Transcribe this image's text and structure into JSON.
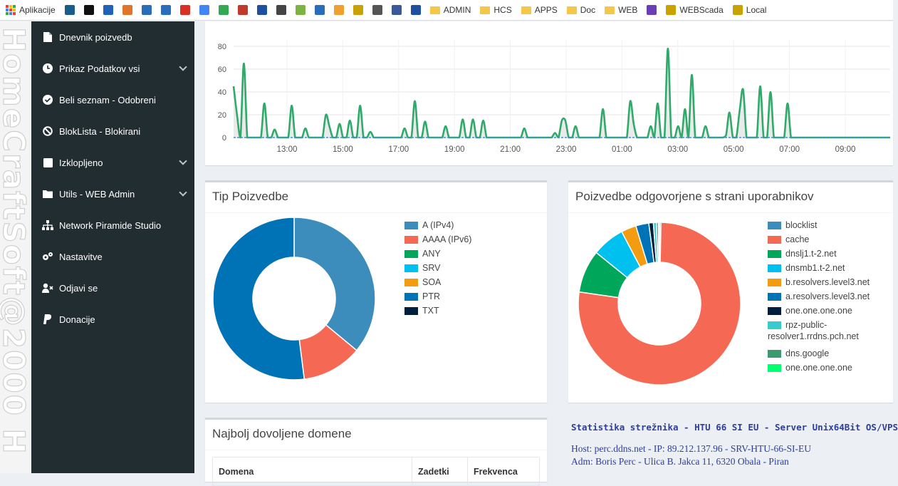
{
  "bookmarks": [
    {
      "icon": "apps-grid-icon",
      "label": "Aplikacije",
      "color": ""
    },
    {
      "icon": "u-logo-icon",
      "label": "",
      "color": "#1a5c8a"
    },
    {
      "icon": "ip-logo-icon",
      "label": "",
      "color": "#111111"
    },
    {
      "icon": "wifi-signal-icon",
      "label": "",
      "color": "#1e63b8"
    },
    {
      "icon": "circle-logo-icon",
      "label": "",
      "color": "#e0742b"
    },
    {
      "icon": "gear-icon",
      "label": "",
      "color": "#2a6ebb"
    },
    {
      "icon": "puzzle-icon",
      "label": "",
      "color": "#2a6ebb"
    },
    {
      "icon": "gmail-icon",
      "label": "",
      "color": "#d93025"
    },
    {
      "icon": "translate-icon",
      "label": "",
      "color": "#4285f4"
    },
    {
      "icon": "drive-icon",
      "label": "",
      "color": "#34a853"
    },
    {
      "icon": "news-icon",
      "label": "",
      "color": "#c0392b"
    },
    {
      "icon": "ip-blue-icon",
      "label": "",
      "color": "#1f4fa0"
    },
    {
      "icon": "speedometer-icon",
      "label": "",
      "color": "#444444"
    },
    {
      "icon": "recycle-icon",
      "label": "",
      "color": "#7cb342"
    },
    {
      "icon": "network-icon",
      "label": "",
      "color": "#2a6ebb"
    },
    {
      "icon": "pma-icon",
      "label": "",
      "color": "#f0a030"
    },
    {
      "icon": "triangle-icon",
      "label": "",
      "color": "#c8a200"
    },
    {
      "icon": "circle-dark-icon",
      "label": "",
      "color": "#555555"
    },
    {
      "icon": "facebook-icon",
      "label": "",
      "color": "#3b5998"
    },
    {
      "icon": "sigma-icon",
      "label": "",
      "color": "#1f4fa0"
    },
    {
      "icon": "folder-icon",
      "label": "ADMIN",
      "color": "#f5c749"
    },
    {
      "icon": "folder-icon",
      "label": "HCS",
      "color": "#f5c749"
    },
    {
      "icon": "folder-icon",
      "label": "APPS",
      "color": "#f5c749"
    },
    {
      "icon": "folder-icon",
      "label": "Doc",
      "color": "#f5c749"
    },
    {
      "icon": "folder-icon",
      "label": "WEB",
      "color": "#f5c749"
    },
    {
      "icon": "infinity-icon",
      "label": "",
      "color": "#6a3fb5"
    },
    {
      "icon": "triangle-icon",
      "label": "WEBScada",
      "color": "#c8a200"
    },
    {
      "icon": "triangle-icon",
      "label": "Local",
      "color": "#c8a200"
    }
  ],
  "watermark": "HomeCraftSoft@2000 H",
  "sidebar": {
    "items": [
      {
        "icon": "document-icon",
        "label": "Dnevnik poizvedb",
        "has_chevron": false
      },
      {
        "icon": "clock-icon",
        "label": "Prikaz Podatkov vsi",
        "has_chevron": true
      },
      {
        "icon": "check-circle-icon",
        "label": "Beli seznam - Odobreni",
        "has_chevron": false
      },
      {
        "icon": "ban-icon",
        "label": "BlokLista - Blokirani",
        "has_chevron": false
      },
      {
        "icon": "square-icon",
        "label": "Izklopljeno",
        "has_chevron": true
      },
      {
        "icon": "folder-icon",
        "label": "Utils - WEB Admin",
        "has_chevron": true
      },
      {
        "icon": "sitemap-icon",
        "label": "Network Piramide Studio",
        "has_chevron": false
      },
      {
        "icon": "cogs-icon",
        "label": "Nastavitve",
        "has_chevron": false
      },
      {
        "icon": "user-times-icon",
        "label": "Odjavi se",
        "has_chevron": false
      },
      {
        "icon": "paypal-icon",
        "label": "Donacije",
        "has_chevron": false
      }
    ]
  },
  "chart_data": [
    {
      "type": "area",
      "title": "",
      "x_ticks": [
        "13:00",
        "15:00",
        "17:00",
        "19:00",
        "21:00",
        "23:00",
        "01:00",
        "03:00",
        "05:00",
        "07:00",
        "09:00"
      ],
      "y_ticks": [
        0,
        20,
        40,
        60,
        80
      ],
      "ylim": [
        0,
        85
      ],
      "grid": true,
      "series": [
        {
          "color": "#2faa6a",
          "fill": "#e8e8e8",
          "values": [
            45,
            20,
            0,
            65,
            0,
            0,
            0,
            0,
            0,
            30,
            0,
            0,
            7,
            0,
            0,
            0,
            0,
            28,
            0,
            0,
            0,
            8,
            0,
            0,
            0,
            0,
            0,
            20,
            10,
            0,
            0,
            12,
            0,
            0,
            15,
            0,
            0,
            28,
            0,
            0,
            5,
            0,
            0,
            0,
            0,
            0,
            0,
            0,
            0,
            0,
            8,
            0,
            0,
            32,
            0,
            0,
            14,
            0,
            0,
            0,
            0,
            0,
            10,
            0,
            0,
            0,
            0,
            16,
            0,
            0,
            16,
            0,
            0,
            15,
            0,
            0,
            0,
            0,
            0,
            0,
            0,
            0,
            0,
            0,
            0,
            8,
            0,
            0,
            0,
            0,
            0,
            0,
            0,
            0,
            4,
            0,
            15,
            15,
            0,
            0,
            10,
            0,
            0,
            0,
            0,
            0,
            0,
            0,
            25,
            0,
            0,
            0,
            0,
            0,
            0,
            0,
            32,
            12,
            0,
            0,
            0,
            0,
            10,
            0,
            30,
            0,
            0,
            78,
            0,
            0,
            10,
            0,
            25,
            0,
            55,
            0,
            0,
            0,
            10,
            0,
            0,
            0,
            0,
            0,
            2,
            22,
            0,
            0,
            24,
            42,
            0,
            0,
            0,
            0,
            45,
            0,
            0,
            40,
            0,
            0,
            0,
            0,
            30,
            0,
            0,
            0,
            0,
            0,
            0,
            0,
            0,
            0,
            0,
            0,
            0,
            0,
            0,
            0,
            0,
            0,
            0,
            0,
            0,
            0,
            0,
            0,
            0,
            0,
            0,
            0,
            0,
            0,
            0
          ]
        },
        {
          "color": "#3a8fd9",
          "fill": "none",
          "values": [
            0,
            0
          ]
        }
      ]
    },
    {
      "type": "pie",
      "title": "Tip Poizvedbe",
      "categories": [
        "A (IPv4)",
        "AAAA (IPv6)",
        "ANY",
        "SRV",
        "SOA",
        "PTR",
        "TXT"
      ],
      "values": [
        36,
        12,
        0,
        0,
        0,
        52,
        0
      ],
      "colors": [
        "#3c8dbc",
        "#f56954",
        "#00a65a",
        "#00c0ef",
        "#f39c12",
        "#0073b7",
        "#001f3f"
      ]
    },
    {
      "type": "pie",
      "title": "Poizvedbe odgovorjene s strani uporabnikov",
      "categories": [
        "blocklist",
        "cache",
        "dnslj1.t-2.net",
        "dnsmb1.t-2.net",
        "b.resolvers.level3.net",
        "a.resolvers.level3.net",
        "one.one.one.one",
        "rpz-public-resolver1.rrdns.pch.net",
        "dns.google",
        "one.one.one.one"
      ],
      "values": [
        0.3,
        77,
        8.5,
        6.5,
        3,
        2.6,
        0.9,
        0.6,
        0.4,
        0.2
      ],
      "colors": [
        "#3c8dbc",
        "#f56954",
        "#00a65a",
        "#00c0ef",
        "#f39c12",
        "#0073b7",
        "#001f3f",
        "#39cccc",
        "#3d9970",
        "#01ff70"
      ]
    }
  ],
  "legend_types": {
    "items": [
      "A (IPv4)",
      "AAAA (IPv6)",
      "ANY",
      "SRV",
      "SOA",
      "PTR",
      "TXT"
    ]
  },
  "legend_clients": {
    "items": [
      "blocklist",
      "cache",
      "dnslj1.t-2.net",
      "dnsmb1.t-2.net",
      "b.resolvers.level3.net",
      "a.resolvers.level3.net",
      "one.one.one.one",
      "rpz-public-resolver1.rrdns.pch.net",
      "dns.google",
      "one.one.one.one"
    ],
    "rpz_line1": "rpz-public-",
    "rpz_line2": "resolver1.rrdns.pch.net"
  },
  "panels": {
    "types_title": "Tip Poizvedbe",
    "clients_title": "Poizvedbe odgovorjene s strani uporabnikov",
    "domains_title": "Najbolj dovoljene domene"
  },
  "domains_table": {
    "headers": [
      "Domena",
      "Zadetki",
      "Frekvenca"
    ]
  },
  "server_stats": {
    "title": "Statistika strežnika - HTU 66 SI EU - Server Unix64Bit OS/VPS",
    "host_line": "Host: perc.ddns.net - IP: 89.212.137.96 - SRV-HTU-66-SI-EU",
    "adm_line": "Adm: Boris Perc - Ulica B. Jakca 11, 6320 Obala - Piran"
  },
  "colors": {
    "sidebar_bg": "#222d32",
    "content_bg": "#ecf0f5",
    "panel_border": "#d2d6de",
    "stats_text": "#2c3e9f"
  }
}
